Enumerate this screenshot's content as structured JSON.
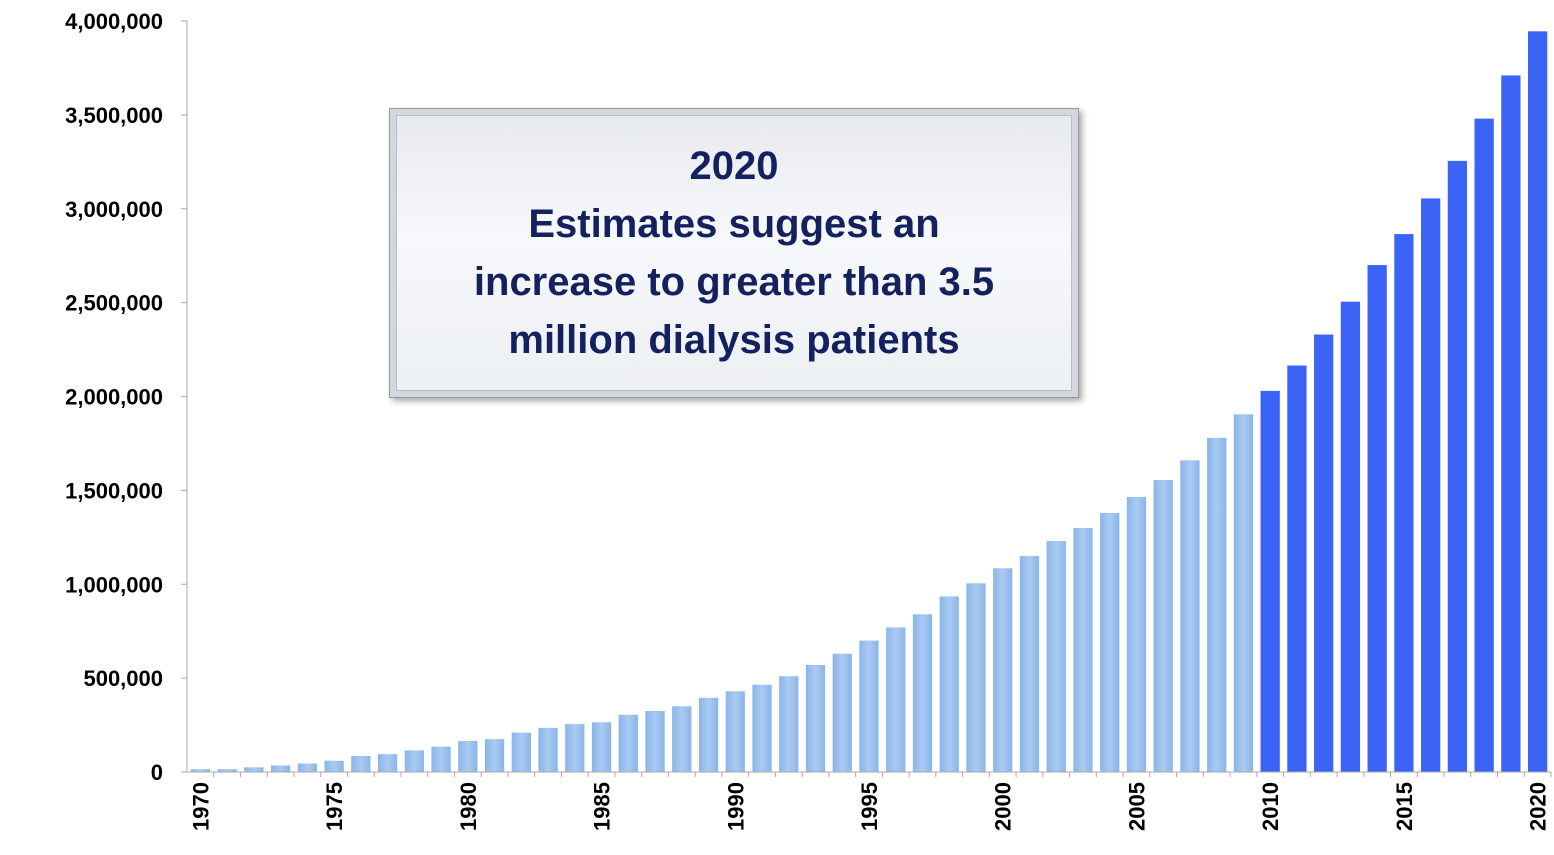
{
  "chart_data": {
    "type": "bar",
    "title": "",
    "xlabel": "",
    "ylabel": "",
    "ylim": [
      0,
      4000000
    ],
    "y_ticks": [
      "0",
      "500,000",
      "1,000,000",
      "1,500,000",
      "2,000,000",
      "2,500,000",
      "3,000,000",
      "3,500,000",
      "4,000,000"
    ],
    "x_tick_labels": [
      "1970",
      "1975",
      "1980",
      "1985",
      "1990",
      "1995",
      "2000",
      "2005",
      "2010",
      "2015",
      "2020"
    ],
    "grid": false,
    "categories": [
      1970,
      1971,
      1972,
      1973,
      1974,
      1975,
      1976,
      1977,
      1978,
      1979,
      1980,
      1981,
      1982,
      1983,
      1984,
      1985,
      1986,
      1987,
      1988,
      1989,
      1990,
      1991,
      1992,
      1993,
      1994,
      1995,
      1996,
      1997,
      1998,
      1999,
      2000,
      2001,
      2002,
      2003,
      2004,
      2005,
      2006,
      2007,
      2008,
      2009,
      2010,
      2011,
      2012,
      2013,
      2014,
      2015,
      2016,
      2017,
      2018,
      2019,
      2020
    ],
    "values": [
      15000,
      15000,
      25000,
      35000,
      45000,
      60000,
      85000,
      95000,
      115000,
      135000,
      165000,
      175000,
      210000,
      235000,
      255000,
      265000,
      305000,
      325000,
      350000,
      395000,
      430000,
      465000,
      510000,
      570000,
      630000,
      700000,
      770000,
      840000,
      935000,
      1005000,
      1085000,
      1150000,
      1230000,
      1300000,
      1380000,
      1465000,
      1555000,
      1660000,
      1780000,
      1905000,
      2030000,
      2165000,
      2330000,
      2505000,
      2700000,
      2865000,
      3055000,
      3255000,
      3480000,
      3710000,
      3945000
    ],
    "colors": {
      "historical": "#8ab4e8",
      "historical_edge": "#a9cbf2",
      "projected": "#3b63f5",
      "axis": "#aaaaaa",
      "callout_text": "#14215f"
    },
    "projected_from": 2010,
    "annotation": {
      "lines": [
        "2020",
        "Estimates suggest an",
        "increase to greater than 3.5",
        "million dialysis patients"
      ]
    }
  }
}
